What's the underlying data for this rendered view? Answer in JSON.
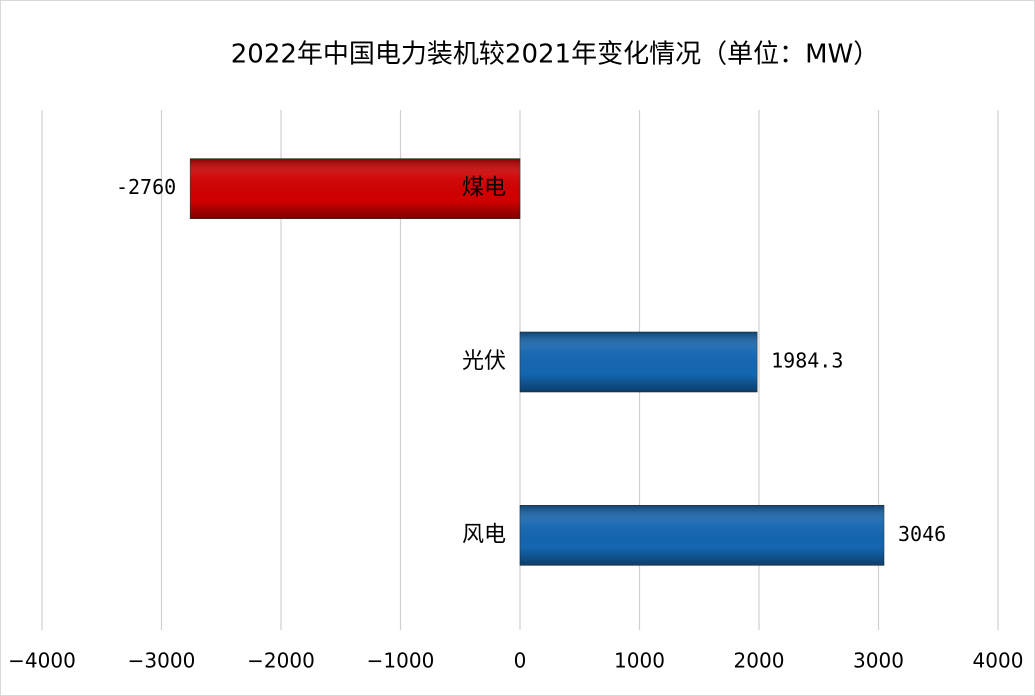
{
  "chart_data": {
    "type": "hbar",
    "title": "2022年中国电力装机较2021年变化情况（单位：MW）",
    "categories": [
      "煤电",
      "光伏",
      "风电"
    ],
    "values": [
      -2760,
      1984.3,
      3046
    ],
    "colors": [
      "#d00000",
      "#1466b0",
      "#1466b0"
    ],
    "xlim": [
      -4000,
      4000
    ],
    "xticks": [
      {
        "value": -4000,
        "label": "−4000"
      },
      {
        "value": -3000,
        "label": "−3000"
      },
      {
        "value": -2000,
        "label": "−2000"
      },
      {
        "value": -1000,
        "label": "−1000"
      },
      0,
      1000,
      2000,
      3000,
      4000
    ],
    "grid": true
  }
}
